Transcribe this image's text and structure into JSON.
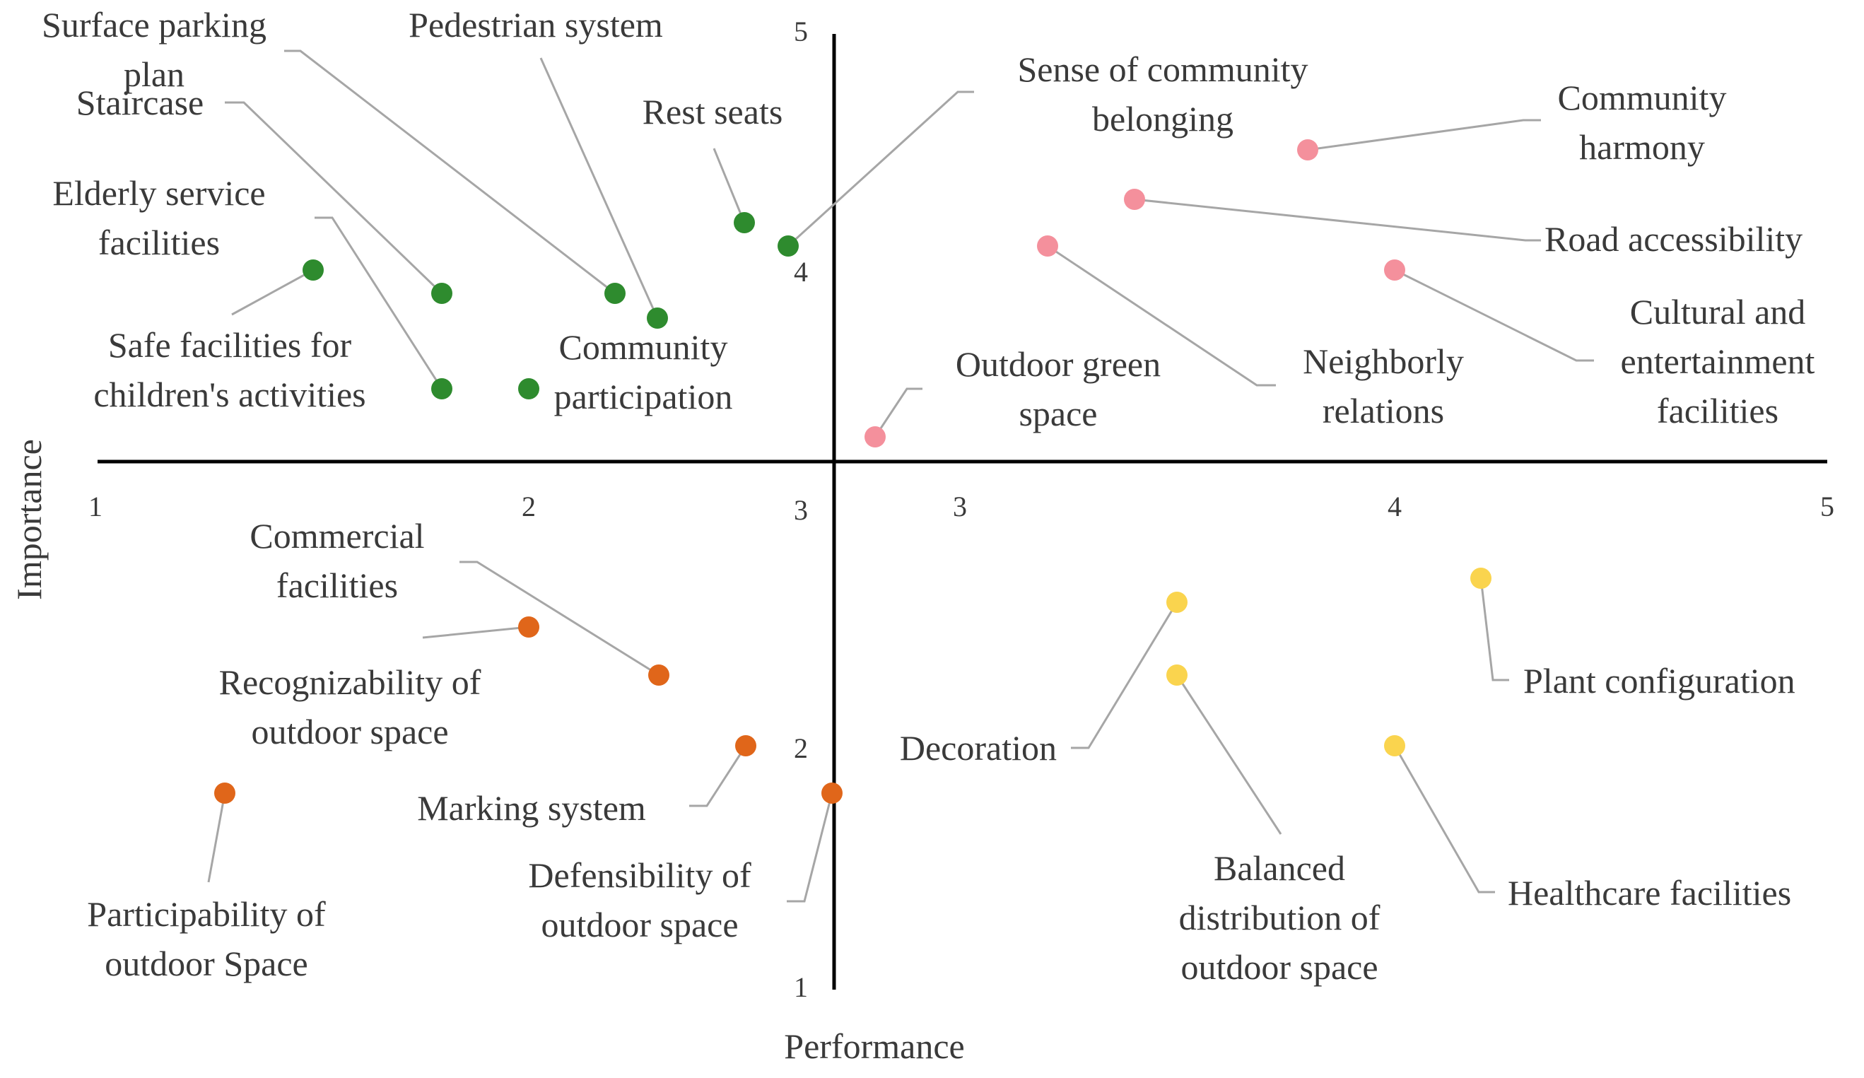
{
  "chart_data": {
    "type": "scatter",
    "title": "",
    "xlabel": "Performance",
    "ylabel": "Importance",
    "xlim": [
      1,
      5
    ],
    "ylim": [
      1,
      5
    ],
    "crosshair": {
      "x": 2.7,
      "y": 3.0
    },
    "grid": false,
    "x_ticks_left": [
      "1",
      "2",
      "3"
    ],
    "x_ticks_right": [
      "3",
      "4",
      "5"
    ],
    "y_ticks_upper": [
      "5",
      "4"
    ],
    "y_ticks_lower": [
      "3",
      "2",
      "1"
    ],
    "colors": {
      "green": "#2e8b2e",
      "pink": "#f4909c",
      "orange": "#e0661a",
      "yellow": "#fad44e"
    },
    "points": [
      {
        "label": "Surface parking plan",
        "x": 2.4,
        "y": 3.7,
        "quadrant": "green"
      },
      {
        "label": "Pedestrian system",
        "x": 2.5,
        "y": 3.6,
        "quadrant": "green"
      },
      {
        "label": "Staircase",
        "x": 1.8,
        "y": 3.7,
        "quadrant": "green"
      },
      {
        "label": "Rest seats",
        "x": 2.6,
        "y": 4.0,
        "quadrant": "green"
      },
      {
        "label": "Sense of community belonging",
        "x": 2.65,
        "y": 3.9,
        "quadrant": "green"
      },
      {
        "label": "Elderly service facilities",
        "x": 1.8,
        "y": 3.3,
        "quadrant": "green"
      },
      {
        "label": "Safe facilities for children's activities",
        "x": 1.5,
        "y": 3.8,
        "quadrant": "green"
      },
      {
        "label": "Community participation",
        "x": 2.0,
        "y": 3.3,
        "quadrant": "green"
      },
      {
        "label": "Community harmony",
        "x": 3.8,
        "y": 4.3,
        "quadrant": "pink"
      },
      {
        "label": "Road accessibility",
        "x": 3.4,
        "y": 4.1,
        "quadrant": "pink"
      },
      {
        "label": "Cultural and entertainment facilities",
        "x": 4.0,
        "y": 3.8,
        "quadrant": "pink"
      },
      {
        "label": "Neighborly relations",
        "x": 3.2,
        "y": 3.9,
        "quadrant": "pink"
      },
      {
        "label": "Outdoor green space",
        "x": 2.8,
        "y": 3.1,
        "quadrant": "pink"
      },
      {
        "label": "Commercial facilities",
        "x": 2.4,
        "y": 2.1,
        "quadrant": "orange"
      },
      {
        "label": "Recognizability of outdoor space",
        "x": 2.0,
        "y": 2.3,
        "quadrant": "orange"
      },
      {
        "label": "Marking system",
        "x": 2.5,
        "y": 1.8,
        "quadrant": "orange"
      },
      {
        "label": "Participability of outdoor Space",
        "x": 1.3,
        "y": 1.6,
        "quadrant": "orange"
      },
      {
        "label": "Defensibility of outdoor space",
        "x": 2.7,
        "y": 1.6,
        "quadrant": "orange"
      },
      {
        "label": "Decoration",
        "x": 3.5,
        "y": 2.4,
        "quadrant": "yellow"
      },
      {
        "label": "Balanced distribution of outdoor space",
        "x": 3.5,
        "y": 2.1,
        "quadrant": "yellow"
      },
      {
        "label": "Plant configuration",
        "x": 4.2,
        "y": 2.5,
        "quadrant": "yellow"
      },
      {
        "label": "Healthcare facilities",
        "x": 4.0,
        "y": 1.8,
        "quadrant": "yellow"
      }
    ]
  }
}
